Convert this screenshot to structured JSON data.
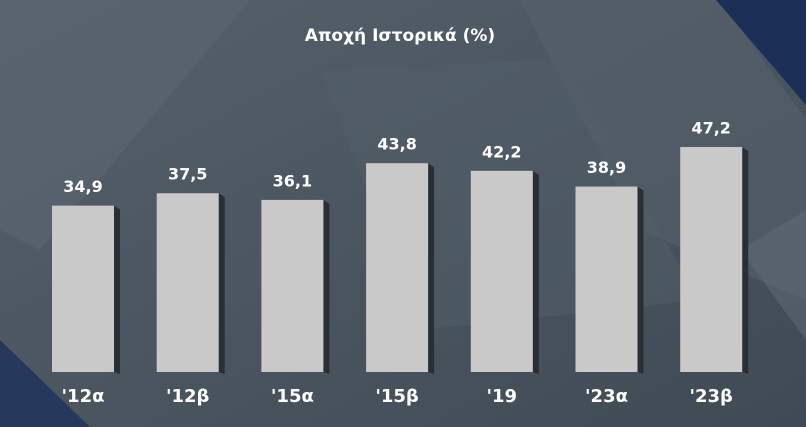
{
  "chart_data": {
    "type": "bar",
    "title": "Αποχή Ιστορικά (%)",
    "categories": [
      "'12α",
      "'12β",
      "'15α",
      "'15β",
      "'19",
      "'23α",
      "'23β"
    ],
    "values": [
      34.9,
      37.5,
      36.1,
      43.8,
      42.2,
      38.9,
      47.2
    ],
    "value_labels": [
      "34,9",
      "37,5",
      "36,1",
      "43,8",
      "42,2",
      "38,9",
      "47,2"
    ],
    "color": "#c9c9c9"
  }
}
